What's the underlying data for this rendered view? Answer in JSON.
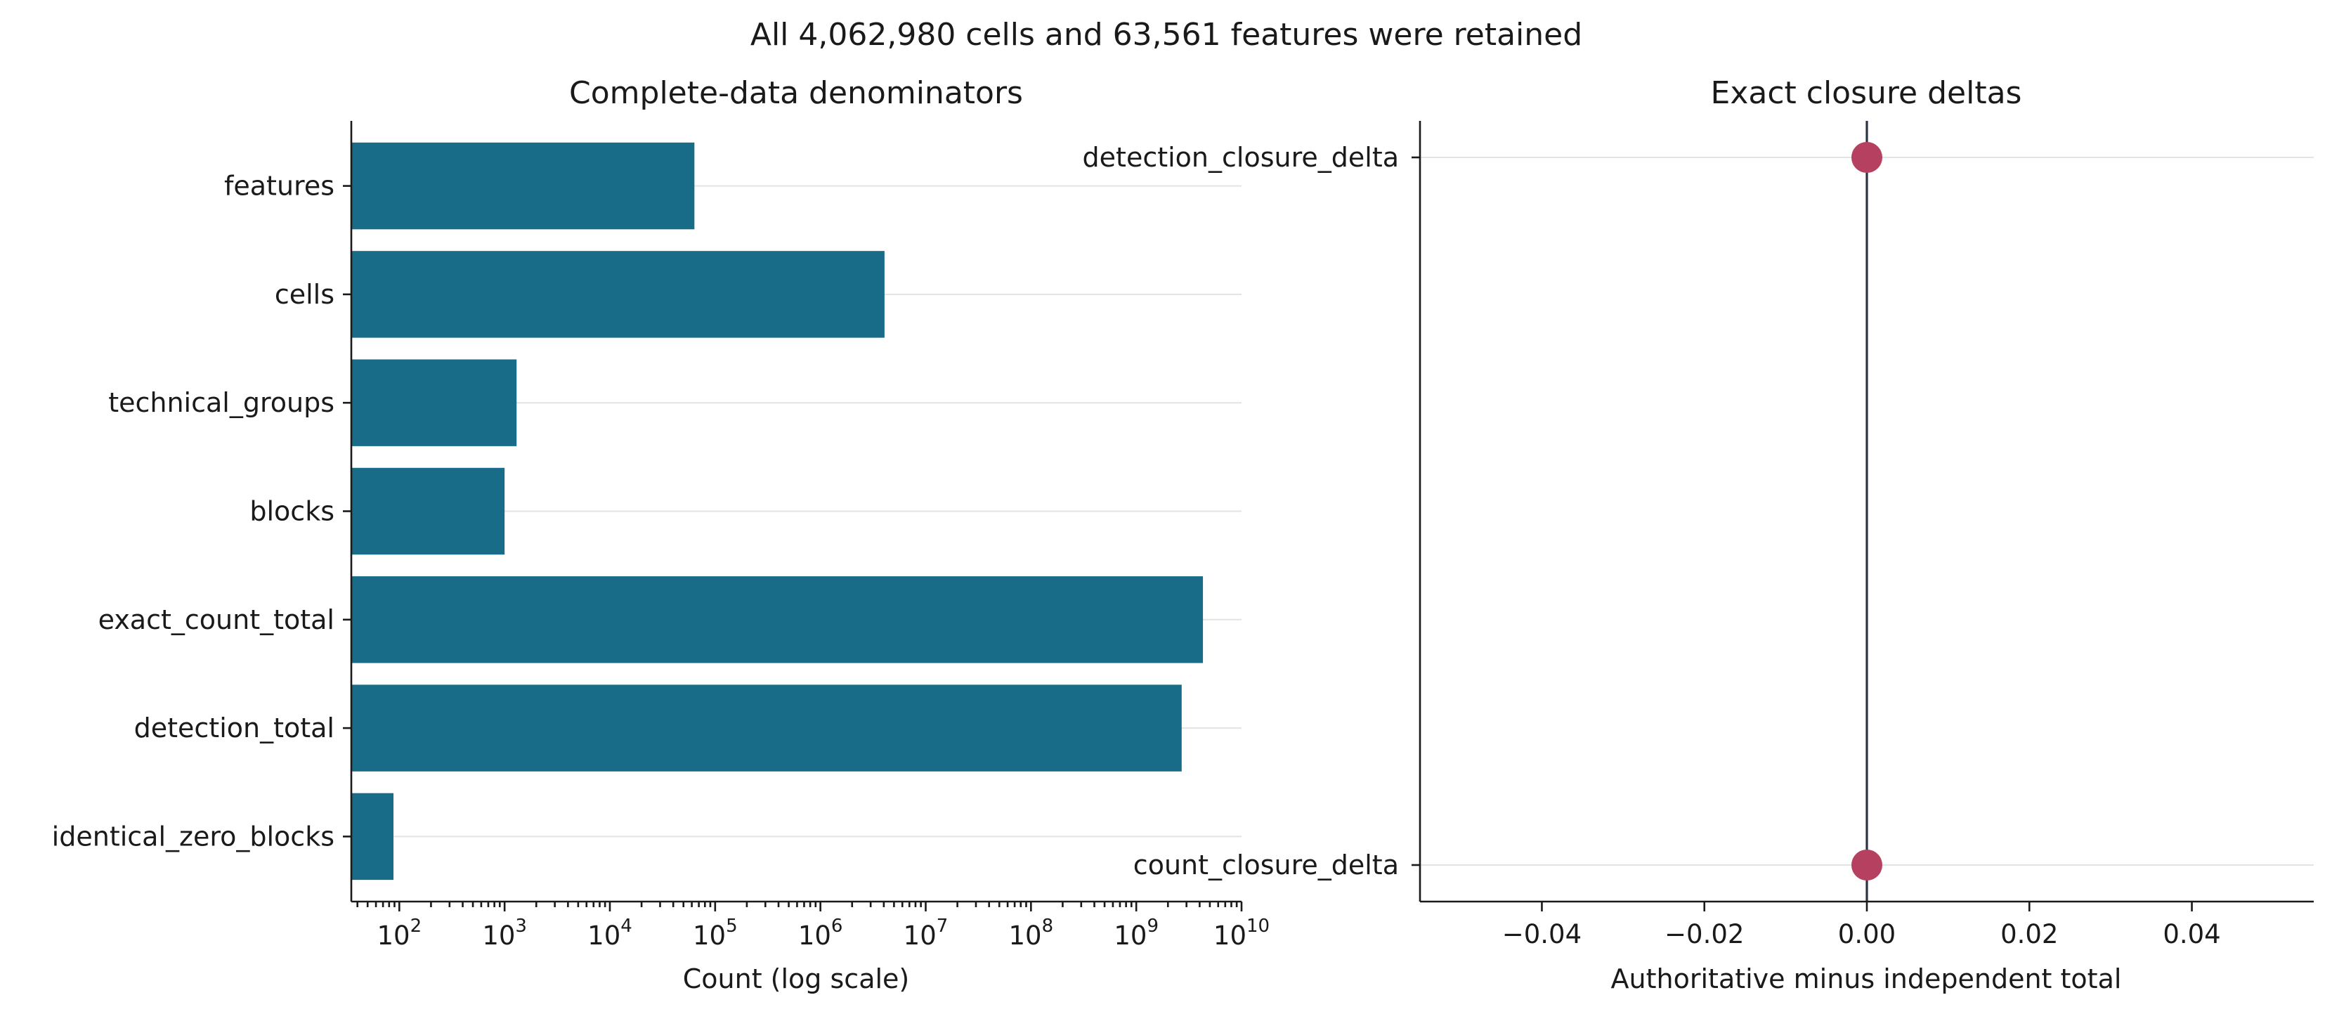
{
  "figure": {
    "suptitle": "All 4,062,980 cells and 63,561 features were retained"
  },
  "colors": {
    "bar": "#186c88",
    "point": "#b5405f",
    "zero_line": "#2b3340",
    "grid": "#e3e3e3"
  },
  "chart_data": [
    {
      "type": "bar",
      "orientation": "horizontal",
      "title": "Complete-data denominators",
      "xlabel": "Count (log scale)",
      "ylabel": "",
      "xscale": "log",
      "xlim": [
        35,
        10000000000
      ],
      "grid": "x-only-horizontal-lines",
      "categories": [
        "features",
        "cells",
        "technical_groups",
        "blocks",
        "exact_count_total",
        "detection_total",
        "identical_zero_blocks"
      ],
      "values": [
        63561,
        4062980,
        1300,
        1000,
        4300000000,
        2700000000,
        88
      ],
      "x_ticks": [
        {
          "base": "10",
          "exp": "2",
          "value": 100
        },
        {
          "base": "10",
          "exp": "3",
          "value": 1000
        },
        {
          "base": "10",
          "exp": "4",
          "value": 10000
        },
        {
          "base": "10",
          "exp": "5",
          "value": 100000
        },
        {
          "base": "10",
          "exp": "6",
          "value": 1000000
        },
        {
          "base": "10",
          "exp": "7",
          "value": 10000000
        },
        {
          "base": "10",
          "exp": "8",
          "value": 100000000
        },
        {
          "base": "10",
          "exp": "9",
          "value": 1000000000
        },
        {
          "base": "10",
          "exp": "10",
          "value": 10000000000
        }
      ]
    },
    {
      "type": "scatter",
      "title": "Exact closure deltas",
      "xlabel": "Authoritative minus independent total",
      "ylabel": "",
      "xlim": [
        -0.055,
        0.055
      ],
      "zero_line": true,
      "categories": [
        "detection_closure_delta",
        "count_closure_delta"
      ],
      "values": [
        0.0,
        0.0
      ],
      "x_ticks": [
        {
          "label": "−0.04",
          "value": -0.04
        },
        {
          "label": "−0.02",
          "value": -0.02
        },
        {
          "label": "0.00",
          "value": 0.0
        },
        {
          "label": "0.02",
          "value": 0.02
        },
        {
          "label": "0.04",
          "value": 0.04
        }
      ]
    }
  ]
}
